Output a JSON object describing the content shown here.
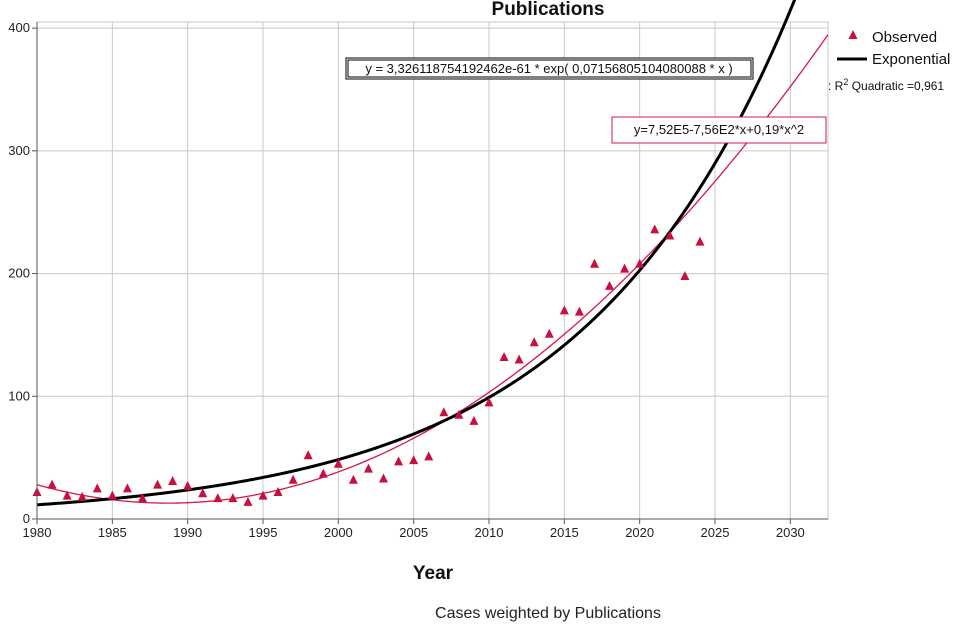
{
  "chart_data": {
    "type": "scatter",
    "title": "Publications",
    "xlabel": "Year",
    "ylabel": "",
    "footnote": "Cases weighted by Publications",
    "xlim": [
      1980,
      2032.5
    ],
    "ylim": [
      0,
      405
    ],
    "x_ticks": [
      "1980",
      "1985",
      "1990",
      "1995",
      "2000",
      "2005",
      "2010",
      "2015",
      "2020",
      "2025",
      "2030"
    ],
    "y_ticks": [
      "0",
      "100",
      "200",
      "300",
      "400"
    ],
    "grid": true,
    "legend_position": "top-right",
    "legend": {
      "observed": "Observed",
      "exponential": "Exponential",
      "r2_prefix": ": R",
      "r2_sup": "2",
      "r2_text": " Quadratic =0,961"
    },
    "equations": {
      "exponential": "y = 3,326118754192462e-61 * exp( 0,07156805104080088 * x )",
      "quadratic": "y=7,52E5-7,56E2*x+0,19*x^2"
    },
    "colors": {
      "observed": "#c8103e",
      "exponential": "#000000",
      "quadratic": "#d4184a",
      "grid": "#c8c8c8"
    },
    "series": [
      {
        "name": "Observed",
        "x": [
          1980,
          1981,
          1982,
          1983,
          1984,
          1985,
          1986,
          1987,
          1988,
          1989,
          1990,
          1991,
          1992,
          1993,
          1994,
          1995,
          1996,
          1997,
          1998,
          1999,
          2000,
          2001,
          2002,
          2003,
          2004,
          2005,
          2006,
          2007,
          2008,
          2009,
          2010,
          2011,
          2012,
          2013,
          2014,
          2015,
          2016,
          2017,
          2018,
          2019,
          2020,
          2021,
          2022,
          2023,
          2024
        ],
        "y": [
          22,
          28,
          19,
          18,
          25,
          19,
          25,
          17,
          28,
          31,
          27,
          21,
          17,
          17,
          14,
          19,
          22,
          32,
          52,
          37,
          45,
          32,
          41,
          33,
          47,
          48,
          51,
          87,
          85,
          80,
          95,
          132,
          130,
          144,
          151,
          170,
          169,
          208,
          190,
          204,
          208,
          236,
          231,
          198,
          226
        ]
      }
    ],
    "fits": {
      "exponential": {
        "a": 3.326118754192462e-61,
        "b": 0.07156805104080088
      },
      "quadratic": {
        "c0": 752000,
        "c1": -756,
        "c2": 0.19,
        "anchors": [
          [
            1980,
            28
          ],
          [
            1991,
            14
          ],
          [
            2032,
            386
          ]
        ]
      }
    }
  }
}
